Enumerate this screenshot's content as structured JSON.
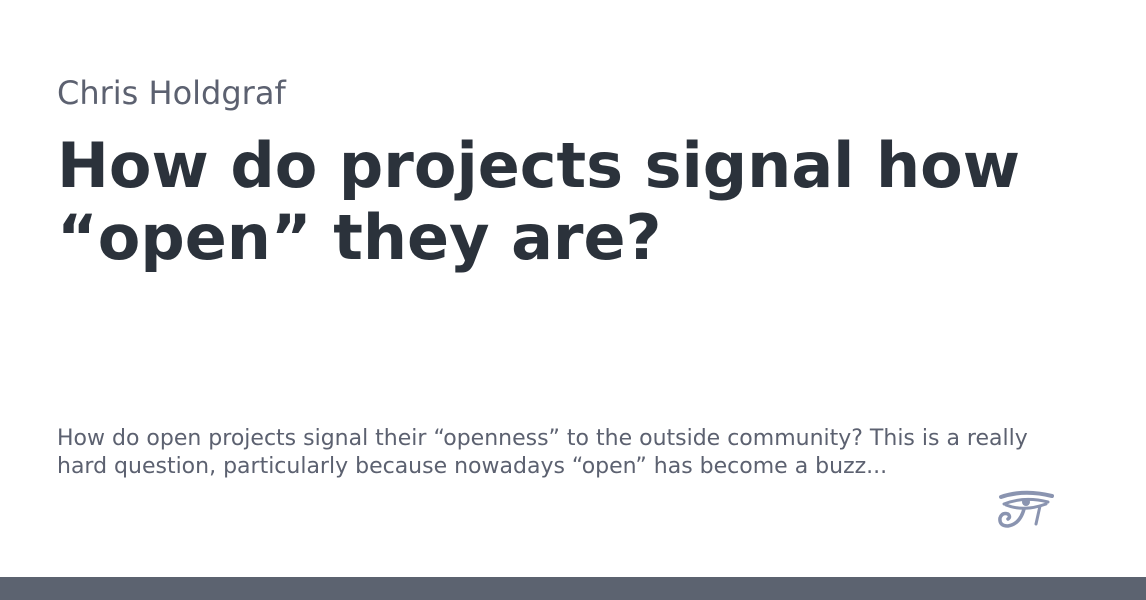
{
  "card": {
    "author": "Chris Holdgraf",
    "title": "How do projects signal how “open” they are?",
    "summary": "How do open projects signal their “openness” to the outside community? This is a really hard question, particularly because nowadays “open” has become a buzz...",
    "logo_icon": "eye-of-horus-icon"
  },
  "colors": {
    "author_text": "#5c6170",
    "title_text": "#2b323b",
    "summary_text": "#5c6170",
    "logo": "#8a94b0",
    "footer_bar": "#5c6370"
  }
}
